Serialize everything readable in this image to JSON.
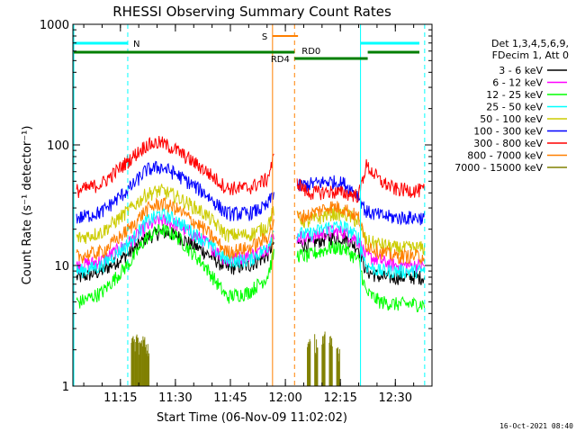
{
  "chart_data": {
    "type": "line",
    "title": "RHESSI Observing Summary Count Rates",
    "xlabel": "Start Time (06-Nov-09 11:02:02)",
    "ylabel": "Count Rate (s⁻¹ detector⁻¹)",
    "y_scale": "log",
    "ylim": [
      1,
      1000
    ],
    "xlim": [
      "11:02:02",
      "12:40:00"
    ],
    "x_ticks": [
      "11:15",
      "11:30",
      "11:45",
      "12:00",
      "12:15",
      "12:30"
    ],
    "y_ticks": [
      "1",
      "10",
      "100",
      "1000"
    ],
    "timestamp": "16-Oct-2021 08:40",
    "legend": {
      "placement": "right",
      "header": [
        "Det 1,3,4,5,6,9,",
        "FDecim 1, Att 0"
      ]
    },
    "flags": [
      {
        "label": "N",
        "color": "#00ffff"
      },
      {
        "label": "S",
        "color": "#ff8000"
      },
      {
        "label": "RD4",
        "color": "#007f00"
      },
      {
        "label": "RD0",
        "color": "#007f00"
      }
    ],
    "series": [
      {
        "name": "3 - 6 keV",
        "color": "#000000",
        "x": [
          "11:04",
          "11:10",
          "11:18",
          "11:22",
          "11:26",
          "11:30",
          "11:38",
          "11:44",
          "11:50",
          "11:55",
          "11:57",
          "12:06",
          "12:12",
          "12:16",
          "12:20",
          "12:22",
          "12:26",
          "12:30",
          "12:36"
        ],
        "y": [
          8,
          9,
          13,
          17,
          19,
          18,
          13,
          9.5,
          10,
          12,
          16,
          15,
          17,
          17,
          14,
          9,
          8,
          8,
          8
        ]
      },
      {
        "name": "6 - 12 keV",
        "color": "#ff00ff",
        "x": [
          "11:04",
          "11:10",
          "11:18",
          "11:22",
          "11:26",
          "11:30",
          "11:38",
          "11:44",
          "11:50",
          "11:55",
          "11:57",
          "12:06",
          "12:12",
          "12:16",
          "12:20",
          "12:22",
          "12:26",
          "12:30",
          "12:36"
        ],
        "y": [
          10,
          11,
          16,
          21,
          24,
          22,
          16,
          11,
          12,
          14,
          18,
          17,
          19,
          19,
          16,
          12,
          11,
          10,
          10
        ]
      },
      {
        "name": "12 - 25 keV",
        "color": "#00ff00",
        "x": [
          "11:04",
          "11:10",
          "11:18",
          "11:22",
          "11:26",
          "11:30",
          "11:38",
          "11:44",
          "11:50",
          "11:55",
          "11:57",
          "12:06",
          "12:12",
          "12:16",
          "12:20",
          "12:22",
          "12:26",
          "12:30",
          "12:36"
        ],
        "y": [
          5,
          6,
          11,
          17,
          20,
          18,
          10,
          5.5,
          6,
          8,
          13,
          12,
          14,
          14,
          11,
          6,
          5,
          4.8,
          4.8
        ]
      },
      {
        "name": "25 - 50 keV",
        "color": "#00ffff",
        "x": [
          "11:04",
          "11:10",
          "11:18",
          "11:22",
          "11:26",
          "11:30",
          "11:38",
          "11:44",
          "11:50",
          "11:55",
          "11:57",
          "12:06",
          "12:12",
          "12:16",
          "12:20",
          "12:22",
          "12:26",
          "12:30",
          "12:36"
        ],
        "y": [
          9,
          10,
          16,
          23,
          27,
          24,
          16,
          11,
          11,
          14,
          20,
          18,
          21,
          21,
          17,
          10,
          9,
          9,
          9
        ]
      },
      {
        "name": "50 - 100 keV",
        "color": "#cccc00",
        "x": [
          "11:04",
          "11:10",
          "11:18",
          "11:22",
          "11:26",
          "11:30",
          "11:38",
          "11:44",
          "11:50",
          "11:55",
          "11:57",
          "12:06",
          "12:12",
          "12:16",
          "12:20",
          "12:22",
          "12:26",
          "12:30",
          "12:36"
        ],
        "y": [
          17,
          19,
          30,
          39,
          42,
          38,
          27,
          18,
          18,
          21,
          30,
          23,
          27,
          27,
          23,
          16,
          15,
          14,
          14
        ]
      },
      {
        "name": "100 - 300 keV",
        "color": "#0000ff",
        "x": [
          "11:04",
          "11:10",
          "11:18",
          "11:22",
          "11:26",
          "11:30",
          "11:38",
          "11:44",
          "11:50",
          "11:55",
          "11:57",
          "12:06",
          "12:12",
          "12:16",
          "12:20",
          "12:22",
          "12:26",
          "12:30",
          "12:36"
        ],
        "y": [
          25,
          28,
          45,
          62,
          66,
          58,
          40,
          27,
          27,
          31,
          42,
          47,
          50,
          48,
          38,
          28,
          26,
          25,
          25
        ]
      },
      {
        "name": "300 - 800 keV",
        "color": "#ff0000",
        "x": [
          "11:04",
          "11:10",
          "11:18",
          "11:22",
          "11:26",
          "11:30",
          "11:38",
          "11:44",
          "11:50",
          "11:55",
          "11:57",
          "12:06",
          "12:12",
          "12:16",
          "12:20",
          "12:22",
          "12:26",
          "12:30",
          "12:36"
        ],
        "y": [
          42,
          48,
          78,
          100,
          105,
          92,
          62,
          44,
          44,
          52,
          80,
          40,
          41,
          40,
          38,
          68,
          50,
          43,
          42
        ]
      },
      {
        "name": "800 - 7000 keV",
        "color": "#ff8000",
        "x": [
          "11:04",
          "11:10",
          "11:18",
          "11:22",
          "11:26",
          "11:30",
          "11:38",
          "11:44",
          "11:50",
          "11:55",
          "11:57",
          "12:06",
          "12:12",
          "12:16",
          "12:20",
          "12:22",
          "12:26",
          "12:30",
          "12:36"
        ],
        "y": [
          12,
          13,
          21,
          29,
          33,
          30,
          20,
          13,
          14,
          17,
          24,
          26,
          31,
          30,
          25,
          15,
          13,
          12,
          12
        ]
      },
      {
        "name": "7000 - 15000 keV",
        "color": "#808000",
        "x": [
          "11:18",
          "11:19",
          "11:20",
          "11:21",
          "11:22",
          "12:06",
          "12:08",
          "12:10",
          "12:12",
          "12:14"
        ],
        "y": [
          2.2,
          2.4,
          2.2,
          2.3,
          2.1,
          2.1,
          2.3,
          2.4,
          2.2,
          2.0
        ]
      }
    ]
  }
}
